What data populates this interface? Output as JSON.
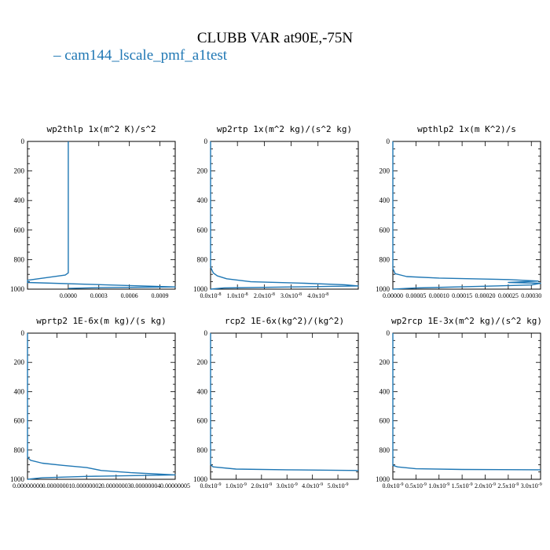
{
  "title": "CLUBB VAR at90E,-75N",
  "legend": {
    "label": "cam144_lscale_pmf_a1test",
    "color": "#1f77b4"
  },
  "chart_data": [
    {
      "type": "line",
      "title": "wp2thlp 1x(m^2 K)/s^2",
      "xlim": [
        -0.0004,
        0.00105
      ],
      "xticks": [
        "0.0000",
        "0.0003",
        "0.0006",
        "0.0009"
      ],
      "xtick_values": [
        0.0,
        0.0003,
        0.0006,
        0.0009
      ],
      "ylim": [
        1000,
        0
      ],
      "yticks": [
        "0",
        "200",
        "400",
        "600",
        "800",
        "1000"
      ],
      "series": [
        {
          "x": [
            0.0,
            0.0,
            0.0,
            0.0,
            -3e-05,
            -0.0004,
            -0.0004,
            0.00105,
            0.0003,
            0.0
          ],
          "y": [
            0,
            400,
            800,
            890,
            905,
            940,
            955,
            985,
            990,
            995
          ]
        }
      ]
    },
    {
      "type": "line",
      "title": "wp2rtp 1x(m^2 kg)/(s^2 kg)",
      "xlim": [
        0.0,
        5.5e-08
      ],
      "xticks": [
        "0.0x10^-8",
        "1.0x10^-8",
        "2.0x10^-8",
        "3.0x10^-8",
        "4.0x10^-8"
      ],
      "xtick_values": [
        0.0,
        1e-08,
        2e-08,
        3e-08,
        4e-08
      ],
      "ylim": [
        1000,
        0
      ],
      "yticks": [
        "0",
        "200",
        "400",
        "600",
        "800",
        "1000"
      ],
      "series": [
        {
          "x": [
            0.0,
            0.0,
            1e-09,
            2.5e-09,
            6e-09,
            1.5e-08,
            3.5e-08,
            5e-08,
            5.5e-08,
            3e-08,
            5e-09,
            0.0
          ],
          "y": [
            0,
            850,
            890,
            910,
            930,
            950,
            960,
            970,
            978,
            985,
            992,
            1000
          ]
        }
      ]
    },
    {
      "type": "line",
      "title": "wpthlp2 1x(m K^2)/s",
      "xlim": [
        0.0,
        0.00032
      ],
      "xticks": [
        "0.00000",
        "0.00005",
        "0.00010",
        "0.00015",
        "0.00020",
        "0.00025",
        "0.00030"
      ],
      "xtick_values": [
        0.0,
        5e-05,
        0.0001,
        0.00015,
        0.0002,
        0.00025,
        0.0003
      ],
      "ylim": [
        1000,
        0
      ],
      "yticks": [
        "0",
        "200",
        "400",
        "600",
        "800",
        "1000"
      ],
      "series": [
        {
          "x": [
            0.0,
            0.0,
            5e-06,
            3e-05,
            0.0001,
            0.00025,
            0.000315,
            0.00025,
            0.00032,
            0.0003,
            0.00018,
            5e-05,
            0.0
          ],
          "y": [
            0,
            860,
            895,
            915,
            925,
            935,
            945,
            955,
            960,
            972,
            982,
            992,
            1000
          ]
        }
      ]
    },
    {
      "type": "line",
      "title": "wprtp2 1E-6x(m kg)/(s kg)",
      "xlim": [
        0.0,
        5e-08
      ],
      "xticks": [
        "0.00000000",
        "0.00000001",
        "0.00000002",
        "0.00000003",
        "0.00000004",
        "0.00000005"
      ],
      "xtick_values": [
        0.0,
        1e-08,
        2e-08,
        3e-08,
        4e-08,
        5e-08
      ],
      "ylim": [
        1000,
        0
      ],
      "yticks": [
        "0",
        "200",
        "400",
        "600",
        "800",
        "1000"
      ],
      "series": [
        {
          "x": [
            0.0,
            0.0,
            1e-09,
            5e-09,
            1.2e-08,
            2e-08,
            2.5e-08,
            3.5e-08,
            4.5e-08,
            5e-08,
            2e-08,
            5e-09,
            0.0
          ],
          "y": [
            0,
            850,
            870,
            890,
            905,
            920,
            940,
            955,
            965,
            970,
            980,
            990,
            1000
          ]
        }
      ]
    },
    {
      "type": "line",
      "title": "rcp2 1E-6x(kg^2)/(kg^2)",
      "xlim": [
        0.0,
        5.8e-09
      ],
      "xticks": [
        "0.0x10^-9",
        "1.0x10^-9",
        "2.0x10^-9",
        "3.0x10^-9",
        "4.0x10^-9",
        "5.0x10^-9"
      ],
      "xtick_values": [
        0.0,
        1e-09,
        2e-09,
        3e-09,
        4e-09,
        5e-09
      ],
      "ylim": [
        1000,
        0
      ],
      "yticks": [
        "0",
        "200",
        "400",
        "600",
        "800",
        "1000"
      ],
      "series": [
        {
          "x": [
            0.0,
            0.0,
            1e-10,
            1e-09,
            3e-09,
            5.8e-09
          ],
          "y": [
            0,
            900,
            915,
            930,
            935,
            940
          ]
        }
      ]
    },
    {
      "type": "line",
      "title": "wp2rcp 1E-3x(m^2 kg)/(s^2 kg)",
      "xlim": [
        0.0,
        3.2e-09
      ],
      "xticks": [
        "0.0x10^-9",
        "0.5x10^-9",
        "1.0x10^-9",
        "1.5x10^-9",
        "2.0x10^-9",
        "2.5x10^-9",
        "3.0x10^-9"
      ],
      "xtick_values": [
        0.0,
        5e-10,
        1e-09,
        1.5e-09,
        2e-09,
        2.5e-09,
        3e-09
      ],
      "ylim": [
        1000,
        0
      ],
      "yticks": [
        "0",
        "200",
        "400",
        "600",
        "800",
        "1000"
      ],
      "series": [
        {
          "x": [
            0.0,
            0.0,
            1e-10,
            5e-10,
            1.5e-09,
            3.2e-09
          ],
          "y": [
            0,
            905,
            915,
            928,
            933,
            935
          ]
        }
      ]
    }
  ]
}
